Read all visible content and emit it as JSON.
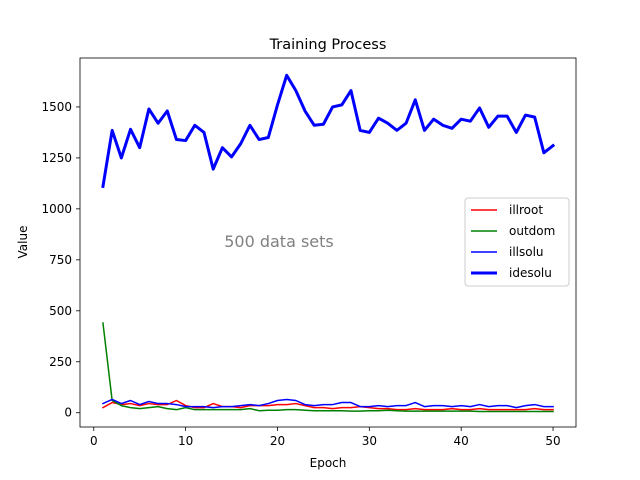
{
  "chart_data": {
    "type": "line",
    "title": "Training Process",
    "xlabel": "Epoch",
    "ylabel": "Value",
    "xlim": [
      -1.5,
      52.5
    ],
    "ylim": [
      -70,
      1740
    ],
    "xticks": [
      0,
      10,
      20,
      30,
      40,
      50
    ],
    "yticks": [
      0,
      250,
      500,
      750,
      1000,
      1250,
      1500
    ],
    "grid": false,
    "legend_position": "center-right",
    "annotation": "500 data sets",
    "x": [
      1,
      2,
      3,
      4,
      5,
      6,
      7,
      8,
      9,
      10,
      11,
      12,
      13,
      14,
      15,
      16,
      17,
      18,
      19,
      20,
      21,
      22,
      23,
      24,
      25,
      26,
      27,
      28,
      29,
      30,
      31,
      32,
      33,
      34,
      35,
      36,
      37,
      38,
      39,
      40,
      41,
      42,
      43,
      44,
      45,
      46,
      47,
      48,
      49,
      50
    ],
    "series": [
      {
        "name": "illroot",
        "color": "#ff0000",
        "width": 1.5,
        "values": [
          25,
          50,
          40,
          45,
          35,
          45,
          40,
          40,
          60,
          35,
          25,
          25,
          45,
          30,
          30,
          25,
          35,
          35,
          35,
          40,
          40,
          45,
          35,
          25,
          25,
          20,
          25,
          25,
          30,
          25,
          20,
          20,
          15,
          15,
          20,
          15,
          15,
          15,
          20,
          15,
          15,
          20,
          15,
          15,
          15,
          15,
          15,
          20,
          15,
          15
        ]
      },
      {
        "name": "outdom",
        "color": "#008000",
        "width": 1.5,
        "values": [
          440,
          60,
          35,
          25,
          20,
          25,
          30,
          20,
          15,
          25,
          15,
          15,
          15,
          15,
          15,
          15,
          20,
          10,
          12,
          12,
          15,
          15,
          12,
          10,
          10,
          10,
          10,
          8,
          8,
          10,
          10,
          12,
          10,
          8,
          8,
          8,
          8,
          8,
          8,
          8,
          8,
          6,
          6,
          6,
          6,
          6,
          6,
          6,
          6,
          6
        ]
      },
      {
        "name": "illsolu",
        "color": "#0000ff",
        "width": 1.5,
        "values": [
          45,
          65,
          45,
          60,
          40,
          55,
          45,
          45,
          40,
          30,
          30,
          30,
          25,
          30,
          30,
          35,
          40,
          35,
          45,
          60,
          65,
          60,
          40,
          35,
          40,
          40,
          50,
          50,
          30,
          30,
          35,
          30,
          35,
          35,
          50,
          30,
          35,
          35,
          30,
          35,
          30,
          40,
          30,
          35,
          35,
          25,
          35,
          40,
          30,
          30
        ]
      },
      {
        "name": "idesolu",
        "color": "#0000ff",
        "width": 3,
        "values": [
          1110,
          1385,
          1250,
          1390,
          1300,
          1490,
          1420,
          1480,
          1340,
          1335,
          1410,
          1375,
          1195,
          1300,
          1255,
          1320,
          1410,
          1340,
          1350,
          1510,
          1655,
          1580,
          1480,
          1410,
          1415,
          1500,
          1510,
          1580,
          1385,
          1375,
          1445,
          1420,
          1385,
          1420,
          1535,
          1385,
          1440,
          1410,
          1395,
          1440,
          1430,
          1495,
          1400,
          1455,
          1455,
          1375,
          1460,
          1450,
          1275,
          1310
        ]
      }
    ]
  }
}
